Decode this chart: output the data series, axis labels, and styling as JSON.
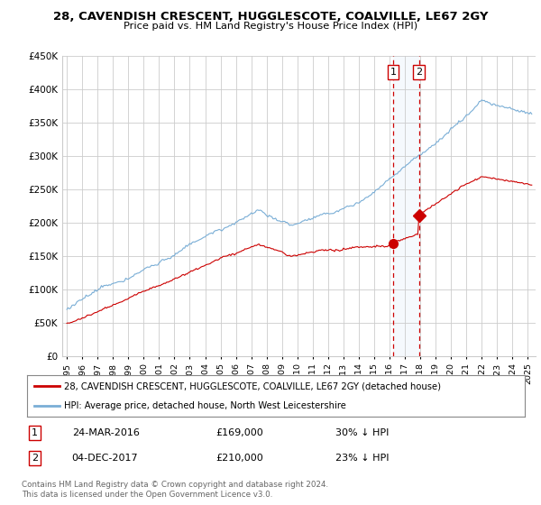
{
  "title1": "28, CAVENDISH CRESCENT, HUGGLESCOTE, COALVILLE, LE67 2GY",
  "title2": "Price paid vs. HM Land Registry's House Price Index (HPI)",
  "ylim": [
    0,
    450000
  ],
  "yticks": [
    0,
    50000,
    100000,
    150000,
    200000,
    250000,
    300000,
    350000,
    400000,
    450000
  ],
  "xlim_start": 1994.7,
  "xlim_end": 2025.5,
  "sale1_date": 2016.23,
  "sale1_price": 169000,
  "sale2_date": 2017.92,
  "sale2_price": 210000,
  "sale1_text": "24-MAR-2016",
  "sale1_amount": "£169,000",
  "sale1_pct": "30% ↓ HPI",
  "sale2_text": "04-DEC-2017",
  "sale2_amount": "£210,000",
  "sale2_pct": "23% ↓ HPI",
  "legend_line1": "28, CAVENDISH CRESCENT, HUGGLESCOTE, COALVILLE, LE67 2GY (detached house)",
  "legend_line2": "HPI: Average price, detached house, North West Leicestershire",
  "footnote": "Contains HM Land Registry data © Crown copyright and database right 2024.\nThis data is licensed under the Open Government Licence v3.0.",
  "red_color": "#cc0000",
  "blue_color": "#7aaed6",
  "grid_color": "#cccccc",
  "bg_color": "#ffffff",
  "shading_color": "#d8e8f8"
}
